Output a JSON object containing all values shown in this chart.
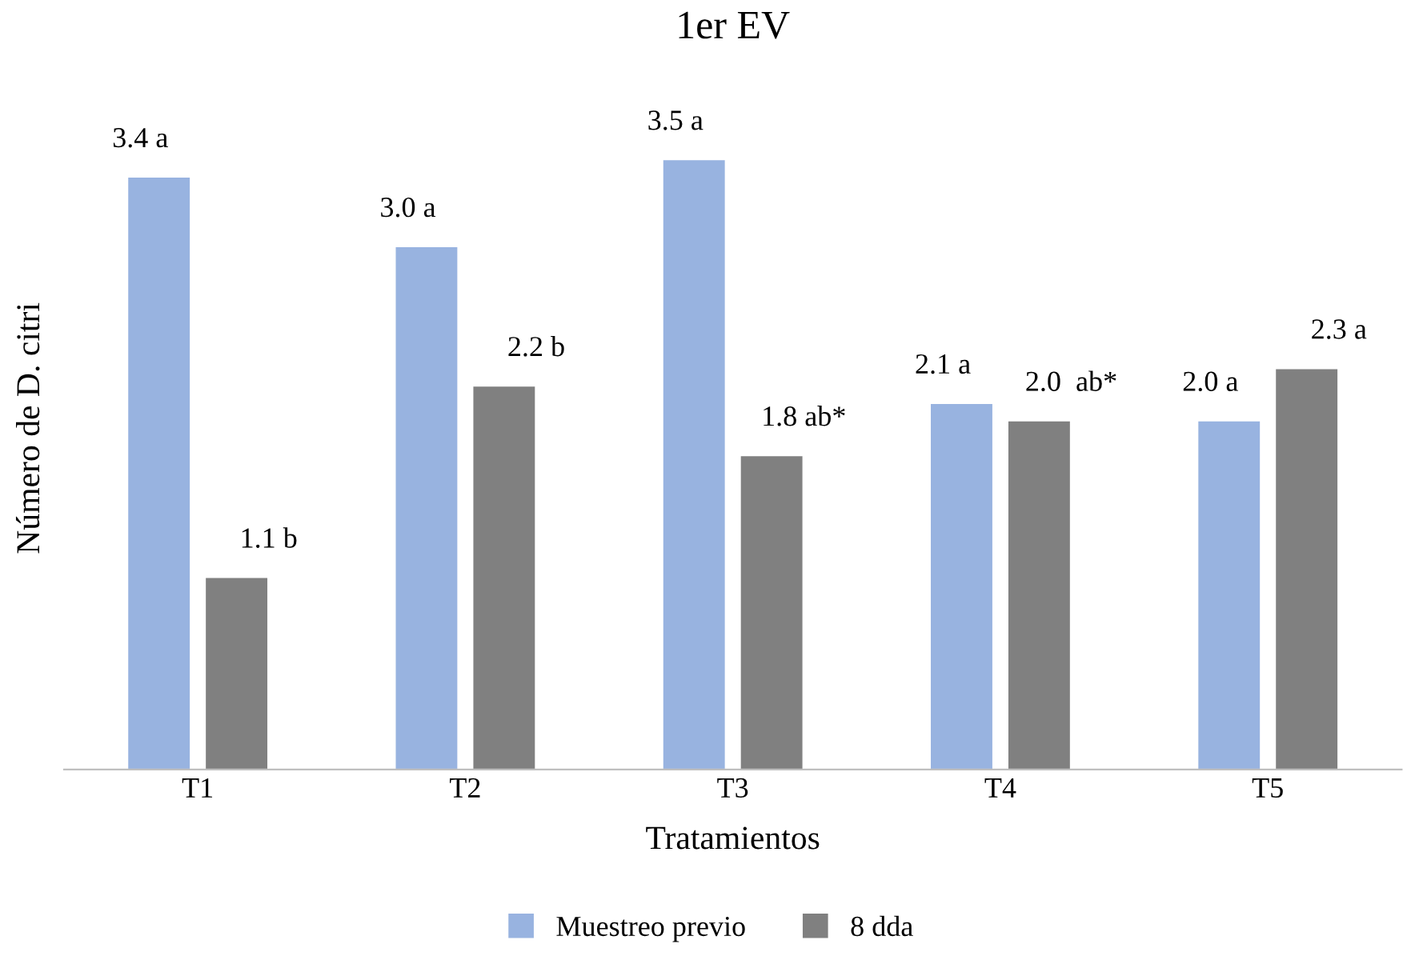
{
  "chart_data": {
    "type": "bar",
    "title": "1er EV",
    "xlabel": "Tratamientos",
    "ylabel": "Número de D. citri",
    "categories": [
      "T1",
      "T2",
      "T3",
      "T4",
      "T5"
    ],
    "series": [
      {
        "name": "Muestreo previo",
        "color": "#98b3e0",
        "values": [
          3.4,
          3.0,
          3.5,
          2.1,
          2.0
        ],
        "value_labels": [
          "3.4 a",
          "3.0 a",
          "3.5 a",
          "2.1 a",
          "2.0 a"
        ]
      },
      {
        "name": "8 dda",
        "color": "#808080",
        "values": [
          1.1,
          2.2,
          1.8,
          2.0,
          2.3
        ],
        "value_labels": [
          "1.1 b",
          "2.2 b",
          "1.8 ab*",
          "2.0  ab*",
          "2.3 a"
        ]
      }
    ],
    "tick_labels": "x",
    "legend": "bottom"
  }
}
